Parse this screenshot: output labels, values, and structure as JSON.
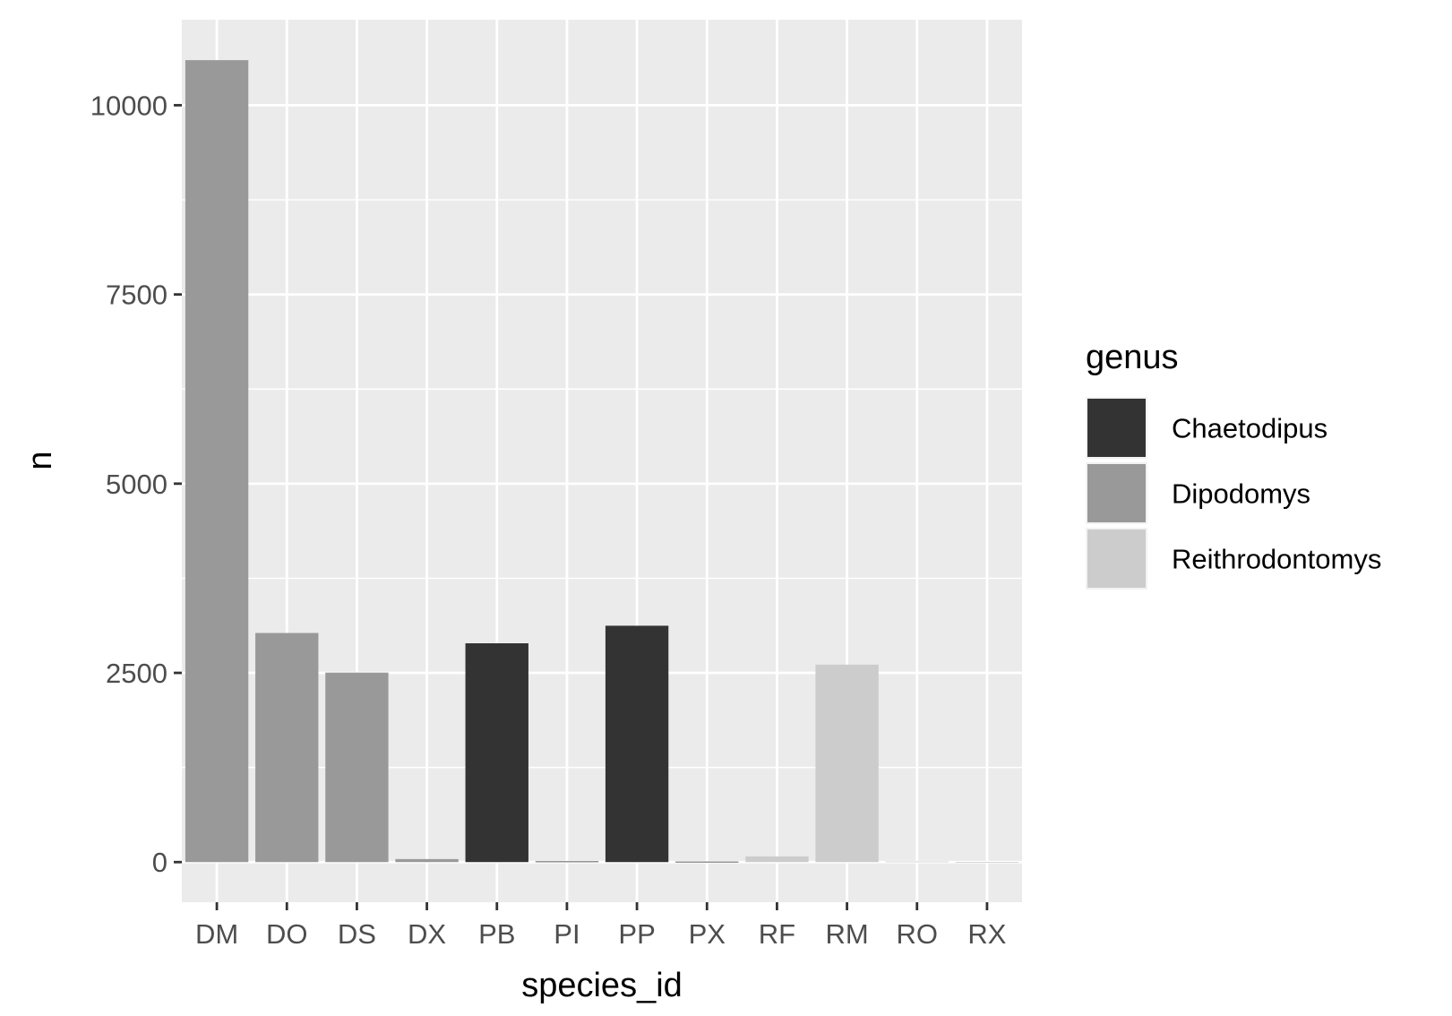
{
  "chart_data": {
    "type": "bar",
    "xlabel": "species_id",
    "ylabel": "n",
    "categories": [
      "DM",
      "DO",
      "DS",
      "DX",
      "PB",
      "PI",
      "PP",
      "PX",
      "RF",
      "RM",
      "RO",
      "RX"
    ],
    "values": [
      10596,
      3027,
      2504,
      40,
      2891,
      9,
      3123,
      6,
      75,
      2609,
      8,
      2
    ],
    "bar_genus": [
      "Dipodomys",
      "Dipodomys",
      "Dipodomys",
      "Dipodomys",
      "Chaetodipus",
      "Chaetodipus",
      "Chaetodipus",
      "Chaetodipus",
      "Reithrodontomys",
      "Reithrodontomys",
      "Reithrodontomys",
      "Reithrodontomys"
    ],
    "y_ticks": [
      0,
      2500,
      5000,
      7500,
      10000
    ],
    "ylim": [
      -530,
      11130
    ],
    "grid": true,
    "legend": {
      "title": "genus",
      "position": "right",
      "entries": [
        {
          "name": "Chaetodipus",
          "color": "#333333"
        },
        {
          "name": "Dipodomys",
          "color": "#999999"
        },
        {
          "name": "Reithrodontomys",
          "color": "#cccccc"
        }
      ]
    },
    "colors": {
      "panel_background": "#ebebeb",
      "grid_line": "#ffffff",
      "axis_tick": "#333333"
    }
  }
}
